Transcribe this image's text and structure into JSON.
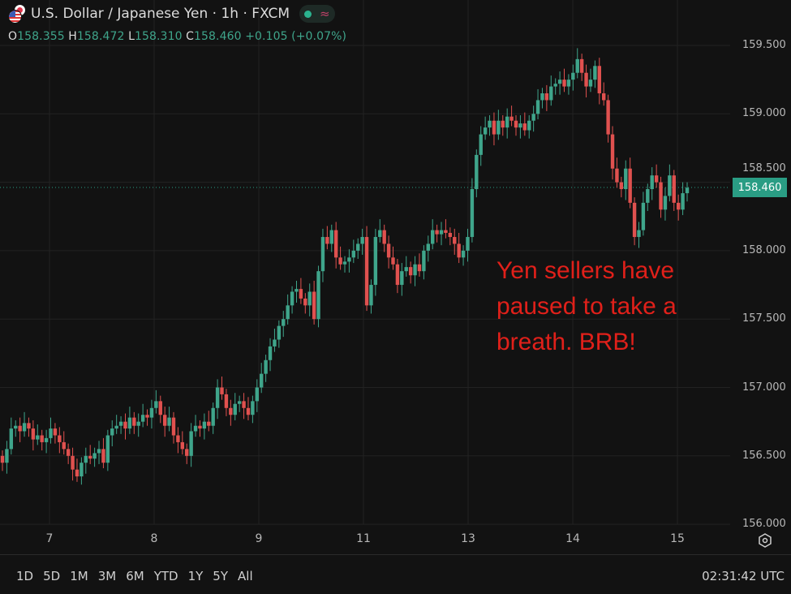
{
  "header": {
    "title": "U.S. Dollar / Japanese Yen · 1h · FXCM",
    "ohlc": {
      "o_label": "O",
      "o": "158.355",
      "h_label": "H",
      "h": "158.472",
      "l_label": "L",
      "l": "158.310",
      "c_label": "C",
      "c": "158.460",
      "change": "+0.105 (+0.07%)"
    }
  },
  "colors": {
    "up": "#3fa58b",
    "down": "#e0514f",
    "background": "#121212",
    "grid": "#222222",
    "annotation": "#e0201a",
    "price_tag": "#2a9d84"
  },
  "annotation": {
    "lines": [
      "Yen sellers have",
      "paused to take a",
      "breath. BRB!"
    ]
  },
  "time_ranges": [
    "1D",
    "5D",
    "1M",
    "3M",
    "6M",
    "YTD",
    "1Y",
    "5Y",
    "All"
  ],
  "clock": "02:31:42 UTC",
  "chart_data": {
    "type": "candlestick",
    "title": "U.S. Dollar / Japanese Yen · 1h · FXCM",
    "x_ticks": [
      "7",
      "8",
      "9",
      "11",
      "13",
      "14",
      "15"
    ],
    "y_ticks": [
      "159.500",
      "159.000",
      "158.500",
      "158.000",
      "157.500",
      "157.000",
      "156.500",
      "156.000"
    ],
    "y_tick_values": [
      159.5,
      159.0,
      158.5,
      158.0,
      157.5,
      157.0,
      156.5,
      156.0
    ],
    "ylim": [
      156.0,
      159.5
    ],
    "grid": true,
    "last_price": "158.460",
    "last_price_value": 158.46,
    "closes": [
      156.45,
      156.55,
      156.7,
      156.72,
      156.68,
      156.74,
      156.7,
      156.62,
      156.65,
      156.6,
      156.63,
      156.7,
      156.65,
      156.6,
      156.55,
      156.5,
      156.4,
      156.35,
      156.45,
      156.5,
      156.48,
      156.52,
      156.55,
      156.45,
      156.65,
      156.7,
      156.72,
      156.75,
      156.7,
      156.78,
      156.72,
      156.75,
      156.8,
      156.78,
      156.85,
      156.9,
      156.8,
      156.72,
      156.78,
      156.65,
      156.6,
      156.55,
      156.5,
      156.68,
      156.72,
      156.7,
      156.75,
      156.72,
      156.85,
      157.0,
      156.95,
      156.85,
      156.8,
      156.88,
      156.9,
      156.85,
      156.8,
      156.9,
      157.0,
      157.1,
      157.2,
      157.3,
      157.35,
      157.45,
      157.5,
      157.6,
      157.7,
      157.72,
      157.65,
      157.6,
      157.7,
      157.5,
      157.85,
      158.1,
      158.05,
      158.15,
      157.95,
      157.9,
      157.92,
      157.95,
      158.0,
      158.05,
      158.1,
      157.6,
      157.75,
      158.1,
      158.15,
      158.05,
      157.95,
      157.9,
      157.75,
      157.85,
      157.88,
      157.82,
      157.9,
      157.85,
      158.0,
      158.05,
      158.15,
      158.12,
      158.15,
      158.13,
      158.1,
      158.05,
      157.95,
      158.0,
      158.1,
      158.45,
      158.7,
      158.85,
      158.9,
      158.95,
      158.85,
      158.95,
      158.9,
      158.98,
      158.95,
      158.9,
      158.93,
      158.88,
      158.95,
      159.0,
      159.1,
      159.15,
      159.1,
      159.2,
      159.22,
      159.25,
      159.2,
      159.25,
      159.3,
      159.4,
      159.3,
      159.2,
      159.25,
      159.35,
      159.15,
      159.1,
      158.85,
      158.6,
      158.5,
      158.45,
      158.6,
      158.35,
      158.1,
      158.15,
      158.35,
      158.45,
      158.55,
      158.5,
      158.3,
      158.4,
      158.55,
      158.35,
      158.3,
      158.42,
      158.46
    ],
    "first_open": 156.5
  }
}
